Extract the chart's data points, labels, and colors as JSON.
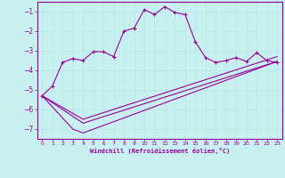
{
  "xlabel": "Windchill (Refroidissement éolien,°C)",
  "bg_color": "#c8f0f0",
  "line_color": "#990099",
  "grid_color": "#aadddd",
  "xlim": [
    -0.5,
    23.5
  ],
  "ylim": [
    -7.5,
    -0.5
  ],
  "xticks": [
    0,
    1,
    2,
    3,
    4,
    5,
    6,
    7,
    8,
    9,
    10,
    11,
    12,
    13,
    14,
    15,
    16,
    17,
    18,
    19,
    20,
    21,
    22,
    23
  ],
  "yticks": [
    -7,
    -6,
    -5,
    -4,
    -3,
    -2,
    -1
  ],
  "main_line_x": [
    0,
    1,
    2,
    3,
    4,
    5,
    6,
    7,
    8,
    9,
    10,
    11,
    12,
    13,
    14,
    15,
    16,
    17,
    18,
    19,
    20,
    21,
    22,
    23
  ],
  "main_line_y": [
    -5.3,
    -4.8,
    -3.6,
    -3.4,
    -3.5,
    -3.05,
    -3.05,
    -3.3,
    -2.0,
    -1.85,
    -0.9,
    -1.15,
    -0.75,
    -1.05,
    -1.15,
    -2.55,
    -3.35,
    -3.6,
    -3.5,
    -3.35,
    -3.55,
    -3.1,
    -3.5,
    -3.6
  ],
  "line2_x": [
    0,
    3,
    4,
    23
  ],
  "line2_y": [
    -5.3,
    -7.0,
    -7.2,
    -3.55
  ],
  "line3_x": [
    0,
    4,
    23
  ],
  "line3_y": [
    -5.3,
    -6.5,
    -3.3
  ],
  "line4_x": [
    0,
    4,
    23
  ],
  "line4_y": [
    -5.3,
    -6.7,
    -3.55
  ]
}
